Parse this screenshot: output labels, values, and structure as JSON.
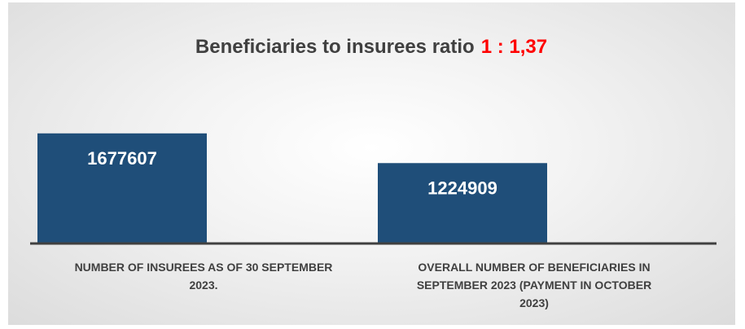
{
  "chart_data": {
    "type": "bar",
    "title": "Beneficiaries to insurees ratio",
    "title_ratio": "1 : 1,37",
    "categories": [
      [
        "NUMBER  OF INSUREES  AS OF  30 SEPTEMBER",
        "2023."
      ],
      [
        "OVERALL NUMBER OF BENEFICIARIES IN",
        "SEPTEMBER 2023 (PAYMENT IN OCTOBER",
        "2023)"
      ]
    ],
    "values": [
      1677607,
      1224909
    ],
    "data_labels": [
      "1677607",
      "1224909"
    ],
    "ylim": [
      0,
      3300000
    ],
    "xlabel": "",
    "ylabel": "",
    "grid": false,
    "legend": "none",
    "colors": {
      "bar": "#1f4e79",
      "title": "#404040",
      "ratio": "#ff0000",
      "data_label": "#ffffff",
      "category_label": "#404040"
    }
  }
}
